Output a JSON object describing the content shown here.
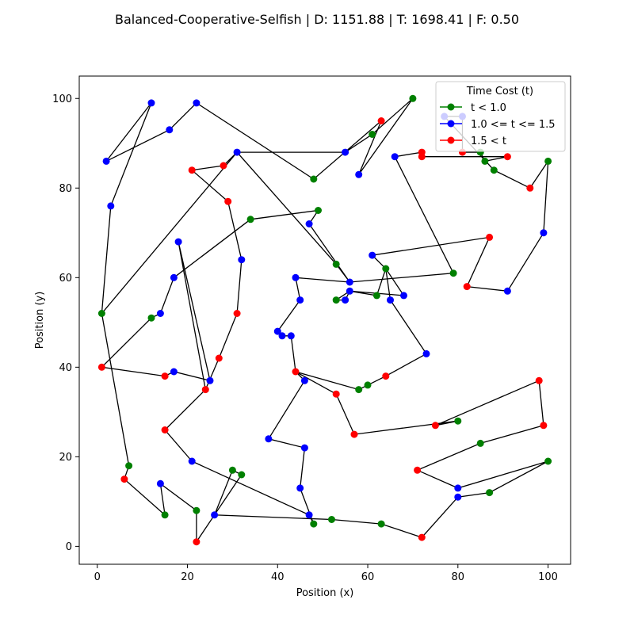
{
  "chart_data": {
    "type": "scatter",
    "title": "Balanced-Cooperative-Selfish | D: 1151.88 | T: 1698.41 | F: 0.50",
    "xlabel": "Position (x)",
    "ylabel": "Position (y)",
    "xlim": [
      -4,
      105
    ],
    "ylim": [
      -4,
      105
    ],
    "xticks": [
      0,
      20,
      40,
      60,
      80,
      100
    ],
    "yticks": [
      0,
      20,
      40,
      60,
      80,
      100
    ],
    "grid": false,
    "legend": {
      "title": "Time Cost (t)",
      "placement": "top-right",
      "entries": [
        {
          "label": "t < 1.0",
          "color": "#008000"
        },
        {
          "label": "1.0 <= t <= 1.5",
          "color": "#0000ff"
        },
        {
          "label": "1.5 < t",
          "color": "#ff0000"
        }
      ]
    },
    "route_color": "#000000",
    "route": [
      [
        12,
        99,
        "blue"
      ],
      [
        2,
        86,
        "blue"
      ],
      [
        16,
        93,
        "blue"
      ],
      [
        22,
        99,
        "blue"
      ],
      [
        48,
        82,
        "green"
      ],
      [
        63,
        95,
        "red"
      ],
      [
        58,
        83,
        "blue"
      ],
      [
        70,
        100,
        "green"
      ],
      [
        61,
        92,
        "green"
      ],
      [
        55,
        88,
        "blue"
      ],
      [
        31,
        88,
        "blue"
      ],
      [
        53,
        63,
        "green"
      ],
      [
        56,
        59,
        "blue"
      ],
      [
        79,
        61,
        "green"
      ],
      [
        66,
        87,
        "blue"
      ],
      [
        72,
        88,
        "red"
      ],
      [
        72,
        87,
        "red"
      ],
      [
        91,
        87,
        "red"
      ],
      [
        86,
        86,
        "green"
      ],
      [
        85,
        88,
        "green"
      ],
      [
        81,
        88,
        "red"
      ],
      [
        81,
        96,
        "blue"
      ],
      [
        77,
        96,
        "blue"
      ],
      [
        88,
        84,
        "green"
      ],
      [
        96,
        80,
        "red"
      ],
      [
        100,
        86,
        "green"
      ],
      [
        99,
        70,
        "blue"
      ],
      [
        91,
        57,
        "blue"
      ],
      [
        82,
        58,
        "red"
      ],
      [
        87,
        69,
        "red"
      ],
      [
        61,
        65,
        "blue"
      ],
      [
        64,
        62,
        "green"
      ],
      [
        62,
        56,
        "green"
      ],
      [
        56,
        57,
        "blue"
      ],
      [
        55,
        55,
        "blue"
      ],
      [
        53,
        55,
        "green"
      ],
      [
        56,
        57,
        "blue"
      ],
      [
        68,
        56,
        "blue"
      ],
      [
        64,
        62,
        "green"
      ],
      [
        65,
        55,
        "blue"
      ],
      [
        73,
        43,
        "blue"
      ],
      [
        64,
        38,
        "red"
      ],
      [
        60,
        36,
        "green"
      ],
      [
        58,
        35,
        "green"
      ],
      [
        44,
        39,
        "red"
      ],
      [
        43,
        47,
        "blue"
      ],
      [
        41,
        47,
        "blue"
      ],
      [
        40,
        48,
        "blue"
      ],
      [
        45,
        55,
        "blue"
      ],
      [
        44,
        60,
        "blue"
      ],
      [
        56,
        59,
        "blue"
      ],
      [
        47,
        72,
        "blue"
      ],
      [
        49,
        75,
        "green"
      ],
      [
        34,
        73,
        "green"
      ],
      [
        17,
        60,
        "blue"
      ],
      [
        14,
        52,
        "blue"
      ],
      [
        12,
        51,
        "green"
      ],
      [
        1,
        40,
        "red"
      ],
      [
        15,
        38,
        "red"
      ],
      [
        17,
        39,
        "blue"
      ],
      [
        25,
        37,
        "blue"
      ],
      [
        18,
        68,
        "blue"
      ],
      [
        24,
        35,
        "red"
      ],
      [
        27,
        42,
        "red"
      ],
      [
        31,
        52,
        "red"
      ],
      [
        32,
        64,
        "blue"
      ],
      [
        29,
        77,
        "red"
      ],
      [
        21,
        84,
        "red"
      ],
      [
        28,
        85,
        "red"
      ],
      [
        31,
        88,
        "blue"
      ],
      [
        1,
        52,
        "green"
      ],
      [
        3,
        76,
        "blue"
      ],
      [
        12,
        99,
        "blue"
      ]
    ],
    "route_b": [
      [
        1,
        52,
        "green"
      ],
      [
        7,
        18,
        "green"
      ],
      [
        6,
        15,
        "red"
      ],
      [
        15,
        7,
        "green"
      ],
      [
        14,
        14,
        "blue"
      ],
      [
        22,
        8,
        "green"
      ],
      [
        22,
        1,
        "red"
      ],
      [
        26,
        7,
        "blue"
      ],
      [
        30,
        17,
        "green"
      ],
      [
        32,
        16,
        "green"
      ],
      [
        26,
        7,
        "blue"
      ],
      [
        52,
        6,
        "green"
      ],
      [
        63,
        5,
        "green"
      ],
      [
        72,
        2,
        "red"
      ],
      [
        80,
        11,
        "blue"
      ],
      [
        87,
        12,
        "green"
      ],
      [
        100,
        19,
        "green"
      ],
      [
        80,
        13,
        "blue"
      ],
      [
        71,
        17,
        "red"
      ],
      [
        85,
        23,
        "green"
      ],
      [
        99,
        27,
        "red"
      ],
      [
        98,
        37,
        "red"
      ],
      [
        75,
        27,
        "red"
      ],
      [
        80,
        28,
        "green"
      ],
      [
        57,
        25,
        "red"
      ],
      [
        53,
        34,
        "red"
      ],
      [
        44,
        39,
        "red"
      ],
      [
        46,
        37,
        "blue"
      ],
      [
        38,
        24,
        "blue"
      ],
      [
        46,
        22,
        "blue"
      ],
      [
        45,
        13,
        "blue"
      ],
      [
        48,
        5,
        "green"
      ],
      [
        47,
        7,
        "blue"
      ],
      [
        21,
        19,
        "blue"
      ],
      [
        15,
        26,
        "red"
      ],
      [
        24,
        35,
        "red"
      ]
    ]
  }
}
